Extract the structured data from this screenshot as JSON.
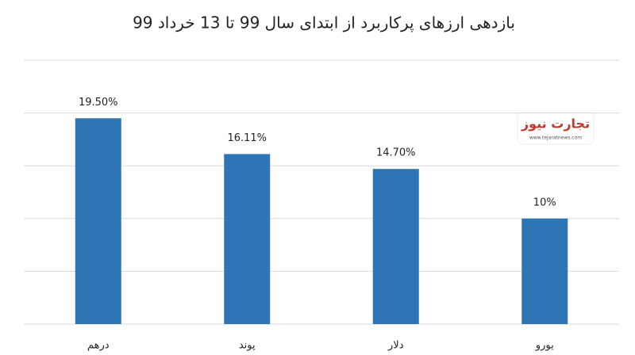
{
  "chart_data": {
    "type": "bar",
    "title": "بازدهی ارزهای پرکاربرد از ابتدای سال 99 تا 13 خرداد 99",
    "categories": [
      "درهم",
      "پوند",
      "دلار",
      "یورو"
    ],
    "values": [
      19.5,
      16.11,
      14.7,
      10
    ],
    "value_labels": [
      "19.50%",
      "16.11%",
      "14.70%",
      "10%"
    ],
    "color": "#2e75b6",
    "ylim": [
      0,
      25
    ],
    "yticks": [
      0,
      5,
      10,
      15,
      20,
      25
    ],
    "grid": true
  },
  "logo": {
    "name": "تجارت نیوز",
    "url": "www.tejaratnews.com"
  }
}
